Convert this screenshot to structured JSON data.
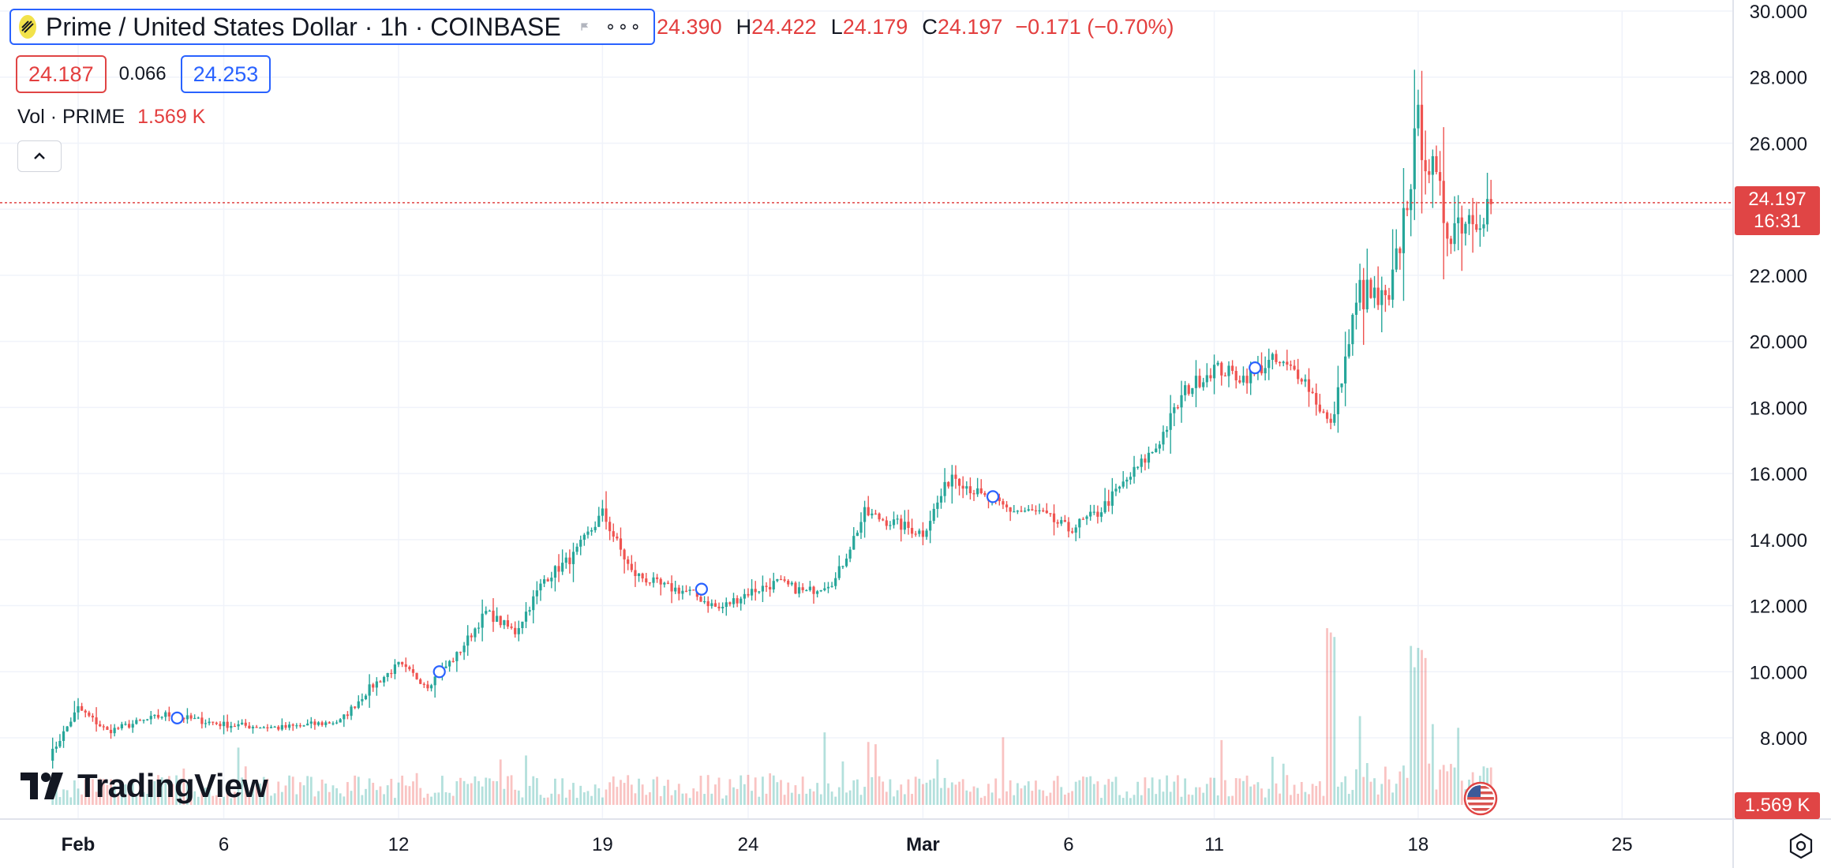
{
  "header": {
    "title": "Prime / United States Dollar · 1h · COINBASE",
    "ohlc": {
      "o_value": "24.390",
      "h_key": "H",
      "h_value": "24.422",
      "l_key": "L",
      "l_value": "24.179",
      "c_key": "C",
      "c_value": "24.197",
      "change": "−0.171 (−0.70%)"
    }
  },
  "trade": {
    "sell": "24.187",
    "spread": "0.066",
    "buy": "24.253"
  },
  "volume_legend": {
    "label": "Vol · PRIME",
    "value": "1.569 K"
  },
  "brand": {
    "name": "TradingView"
  },
  "price_tag": {
    "price": "24.197",
    "countdown": "16:31"
  },
  "volume_tag": "1.569 K",
  "colors": {
    "up": "#26a69a",
    "down": "#ef5350",
    "accent": "#2962ff",
    "last_price": "#e04545"
  },
  "icons": [
    "symbol-logo-icon",
    "flag-icon",
    "more-icon",
    "chevron-up-icon",
    "us-flag-icon",
    "settings-icon"
  ],
  "chart_data": {
    "type": "candlestick",
    "interval": "1h",
    "y_axis": {
      "ticks": [
        "30.000",
        "28.000",
        "26.000",
        "24.000",
        "22.000",
        "20.000",
        "18.000",
        "16.000",
        "14.000",
        "12.000",
        "10.000",
        "8.000"
      ],
      "range": [
        7.0,
        30.2
      ]
    },
    "x_axis": {
      "ticks": [
        "Feb",
        "6",
        "12",
        "19",
        "24",
        "Mar",
        "6",
        "11",
        "18",
        "25"
      ]
    },
    "last_price": 24.197,
    "price_path_close": [
      {
        "date": "Jan 31",
        "price": 7.4
      },
      {
        "date": "Feb 1",
        "price": 8.9
      },
      {
        "date": "Feb 2",
        "price": 8.2
      },
      {
        "date": "Feb 4",
        "price": 8.7
      },
      {
        "date": "Feb 6",
        "price": 8.4
      },
      {
        "date": "Feb 8",
        "price": 8.3
      },
      {
        "date": "Feb 10",
        "price": 8.5
      },
      {
        "date": "Feb 11",
        "price": 9.5
      },
      {
        "date": "Feb 12",
        "price": 10.2
      },
      {
        "date": "Feb 13",
        "price": 9.6
      },
      {
        "date": "Feb 14",
        "price": 10.5
      },
      {
        "date": "Feb 15",
        "price": 11.8
      },
      {
        "date": "Feb 16",
        "price": 11.2
      },
      {
        "date": "Feb 17",
        "price": 12.8
      },
      {
        "date": "Feb 18",
        "price": 13.5
      },
      {
        "date": "Feb 19",
        "price": 14.8
      },
      {
        "date": "Feb 20",
        "price": 13.0
      },
      {
        "date": "Feb 21",
        "price": 12.6
      },
      {
        "date": "Feb 22",
        "price": 12.4
      },
      {
        "date": "Feb 23",
        "price": 11.9
      },
      {
        "date": "Feb 24",
        "price": 12.4
      },
      {
        "date": "Feb 25",
        "price": 12.7
      },
      {
        "date": "Feb 26",
        "price": 12.4
      },
      {
        "date": "Feb 27",
        "price": 12.8
      },
      {
        "date": "Feb 28",
        "price": 14.8
      },
      {
        "date": "Feb 29",
        "price": 14.5
      },
      {
        "date": "Mar 1",
        "price": 14.2
      },
      {
        "date": "Mar 2",
        "price": 16.0
      },
      {
        "date": "Mar 3",
        "price": 15.3
      },
      {
        "date": "Mar 4",
        "price": 14.9
      },
      {
        "date": "Mar 5",
        "price": 14.8
      },
      {
        "date": "Mar 6",
        "price": 14.3
      },
      {
        "date": "Mar 7",
        "price": 14.8
      },
      {
        "date": "Mar 8",
        "price": 15.8
      },
      {
        "date": "Mar 9",
        "price": 16.8
      },
      {
        "date": "Mar 10",
        "price": 18.5
      },
      {
        "date": "Mar 11",
        "price": 19.2
      },
      {
        "date": "Mar 12",
        "price": 18.9
      },
      {
        "date": "Mar 13",
        "price": 19.4
      },
      {
        "date": "Mar 14",
        "price": 19.0
      },
      {
        "date": "Mar 15",
        "price": 17.4
      },
      {
        "date": "Mar 16",
        "price": 21.5
      },
      {
        "date": "Mar 17",
        "price": 21.0
      },
      {
        "date": "Mar 18",
        "price": 26.5
      },
      {
        "date": "Mar 19",
        "price": 23.5
      },
      {
        "date": "Mar 20",
        "price": 24.197
      }
    ],
    "event_markers": [
      {
        "date": "Feb 4",
        "price": 8.6
      },
      {
        "date": "Feb 13",
        "price": 10.0
      },
      {
        "date": "Feb 22",
        "price": 12.5
      },
      {
        "date": "Mar 3",
        "price": 15.3
      },
      {
        "date": "Mar 12",
        "price": 19.2
      }
    ],
    "volume_spikes": [
      {
        "date": "Mar 15",
        "value": "high"
      },
      {
        "date": "Mar 18",
        "value": "high"
      }
    ]
  }
}
